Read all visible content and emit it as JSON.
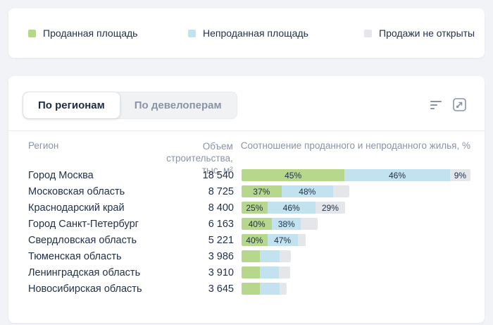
{
  "colors": {
    "sold": "#b6d78c",
    "unsold": "#c3e2f0",
    "not_open": "#e4e6ea",
    "text_dark": "#22314a",
    "text_muted": "#8a94a6"
  },
  "legend": {
    "items": [
      {
        "id": "sold",
        "label": "Проданная площадь",
        "color": "#b6d78c"
      },
      {
        "id": "unsold",
        "label": "Непроданная площадь",
        "color": "#c3e2f0"
      },
      {
        "id": "not-open",
        "label": "Продажи не открыты",
        "color": "#e4e6ea"
      }
    ]
  },
  "tabs": [
    {
      "id": "by-regions",
      "label": "По регионам",
      "active": true
    },
    {
      "id": "by-developers",
      "label": "По девелоперам",
      "active": false
    }
  ],
  "table": {
    "header": {
      "region": "Регион",
      "volume_line1": "Объем строительства,",
      "volume_line2": "тыс. м²",
      "ratio": "Соотношение проданного и непроданного жилья, %"
    },
    "max_volume": 18540,
    "rows": [
      {
        "region": "Город Москва",
        "volume_display": "18 540",
        "volume": 18540,
        "segments": [
          {
            "pct": 45,
            "label": "45%"
          },
          {
            "pct": 46,
            "label": "46%"
          },
          {
            "pct": 9,
            "label": "9%"
          }
        ]
      },
      {
        "region": "Московская область",
        "volume_display": "8 725",
        "volume": 8725,
        "segments": [
          {
            "pct": 37,
            "label": "37%"
          },
          {
            "pct": 48,
            "label": "48%"
          },
          {
            "pct": 15,
            "label": ""
          }
        ]
      },
      {
        "region": "Краснодарский край",
        "volume_display": "8 400",
        "volume": 8400,
        "segments": [
          {
            "pct": 25,
            "label": "25%"
          },
          {
            "pct": 46,
            "label": "46%"
          },
          {
            "pct": 29,
            "label": "29%"
          }
        ]
      },
      {
        "region": "Город Санкт-Петербург",
        "volume_display": "6 163",
        "volume": 6163,
        "segments": [
          {
            "pct": 40,
            "label": "40%"
          },
          {
            "pct": 38,
            "label": "38%"
          },
          {
            "pct": 22,
            "label": ""
          }
        ]
      },
      {
        "region": "Свердловская область",
        "volume_display": "5 221",
        "volume": 5221,
        "segments": [
          {
            "pct": 40,
            "label": "40%"
          },
          {
            "pct": 47,
            "label": "47%"
          },
          {
            "pct": 13,
            "label": ""
          }
        ]
      },
      {
        "region": "Тюменская область",
        "volume_display": "3 986",
        "volume": 3986,
        "segments": [
          {
            "pct": 37,
            "label": ""
          },
          {
            "pct": 41,
            "label": ""
          },
          {
            "pct": 22,
            "label": ""
          }
        ]
      },
      {
        "region": "Ленинградская область",
        "volume_display": "3 910",
        "volume": 3910,
        "segments": [
          {
            "pct": 38,
            "label": ""
          },
          {
            "pct": 40,
            "label": ""
          },
          {
            "pct": 22,
            "label": ""
          }
        ]
      },
      {
        "region": "Новосибирская область",
        "volume_display": "3 645",
        "volume": 3645,
        "segments": [
          {
            "pct": 41,
            "label": ""
          },
          {
            "pct": 44,
            "label": ""
          },
          {
            "pct": 15,
            "label": ""
          }
        ]
      }
    ]
  },
  "chart_data": {
    "type": "bar",
    "subtype": "horizontal-stacked",
    "title": "Соотношение проданного и непроданного жилья, %",
    "categories": [
      "Город Москва",
      "Московская область",
      "Краснодарский край",
      "Город Санкт-Петербург",
      "Свердловская область",
      "Тюменская область",
      "Ленинградская область",
      "Новосибирская область"
    ],
    "volumes_thousand_m2": [
      18540,
      8725,
      8400,
      6163,
      5221,
      3986,
      3910,
      3645
    ],
    "series": [
      {
        "name": "Проданная площадь",
        "values": [
          45,
          37,
          25,
          40,
          40,
          37,
          38,
          41
        ]
      },
      {
        "name": "Непроданная площадь",
        "values": [
          46,
          48,
          46,
          38,
          47,
          41,
          40,
          44
        ]
      },
      {
        "name": "Продажи не открыты",
        "values": [
          9,
          15,
          29,
          22,
          13,
          22,
          22,
          15
        ]
      }
    ],
    "xlabel": "",
    "ylabel": "Регион",
    "units": "%",
    "legend_position": "top",
    "bar_length_encodes": "Объем строительства, тыс. м²"
  }
}
